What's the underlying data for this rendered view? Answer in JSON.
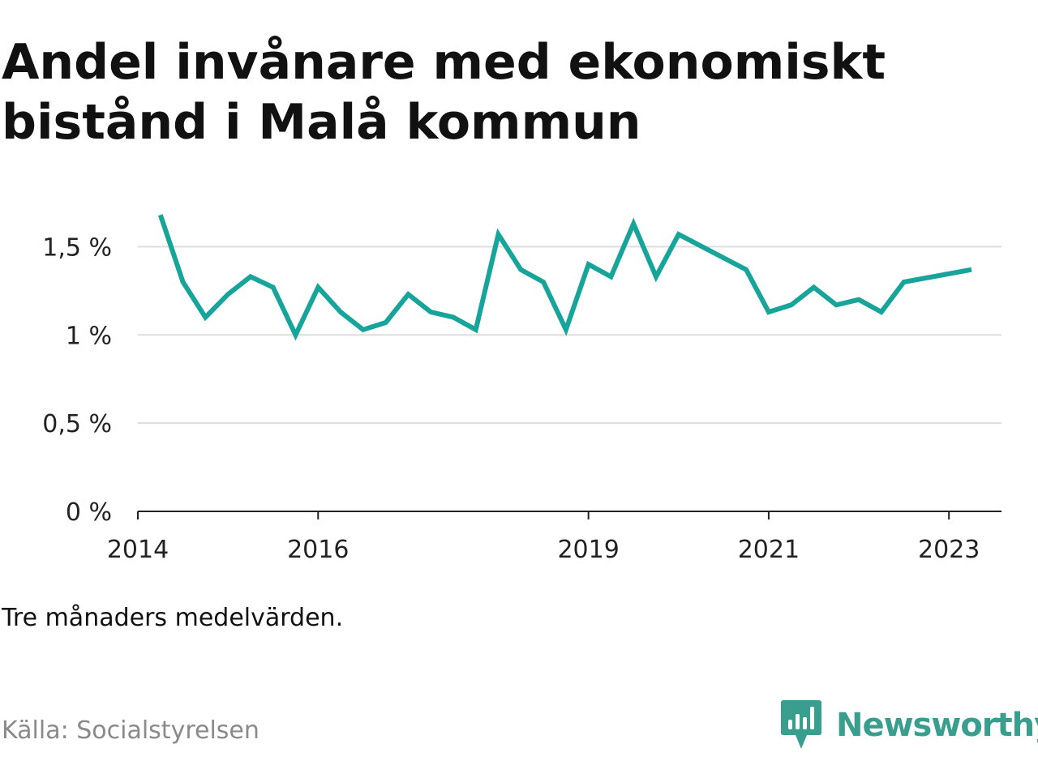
{
  "title": "Andel invånare med ekonomiskt bistånd i Malå kommun",
  "note": "Tre månaders medelvärden.",
  "source": "Källa: Socialstyrelsen",
  "brand": {
    "name": "Newsworthy",
    "logo_icon": "bar-chart-speech-bubble-icon",
    "color": "#3a9e8f"
  },
  "colors": {
    "line": "#17a49a",
    "grid": "#dddddd",
    "axis": "#222222",
    "text": "#111111",
    "muted": "#8a8a8a"
  },
  "chart_data": {
    "type": "line",
    "title": "Andel invånare med ekonomiskt bistånd i Malå kommun",
    "xlabel": "",
    "ylabel": "",
    "x_ticks": [
      "2014",
      "2016",
      "2019",
      "2021",
      "2023"
    ],
    "y_ticks": [
      {
        "value": 0,
        "label": "0 %"
      },
      {
        "value": 0.5,
        "label": "0,5 %"
      },
      {
        "value": 1,
        "label": "1 %"
      },
      {
        "value": 1.5,
        "label": "1,5 %"
      }
    ],
    "ylim": [
      0,
      1.75
    ],
    "xlim": [
      "2014-01",
      "2023-08"
    ],
    "grid": true,
    "series": [
      {
        "values": [
          {
            "x": "2014-04",
            "y": 1.68
          },
          {
            "x": "2014-07",
            "y": 1.3
          },
          {
            "x": "2014-10",
            "y": 1.1
          },
          {
            "x": "2015-01",
            "y": 1.23
          },
          {
            "x": "2015-04",
            "y": 1.33
          },
          {
            "x": "2015-07",
            "y": 1.27
          },
          {
            "x": "2015-10",
            "y": 1.0
          },
          {
            "x": "2016-01",
            "y": 1.27
          },
          {
            "x": "2016-04",
            "y": 1.13
          },
          {
            "x": "2016-07",
            "y": 1.03
          },
          {
            "x": "2016-10",
            "y": 1.07
          },
          {
            "x": "2017-01",
            "y": 1.23
          },
          {
            "x": "2017-04",
            "y": 1.13
          },
          {
            "x": "2017-07",
            "y": 1.1
          },
          {
            "x": "2017-10",
            "y": 1.03
          },
          {
            "x": "2018-01",
            "y": 1.57
          },
          {
            "x": "2018-04",
            "y": 1.37
          },
          {
            "x": "2018-07",
            "y": 1.3
          },
          {
            "x": "2018-10",
            "y": 1.03
          },
          {
            "x": "2019-01",
            "y": 1.4
          },
          {
            "x": "2019-04",
            "y": 1.33
          },
          {
            "x": "2019-07",
            "y": 1.63
          },
          {
            "x": "2019-10",
            "y": 1.33
          },
          {
            "x": "2020-01",
            "y": 1.57
          },
          {
            "x": "2020-10",
            "y": 1.37
          },
          {
            "x": "2021-01",
            "y": 1.13
          },
          {
            "x": "2021-04",
            "y": 1.17
          },
          {
            "x": "2021-07",
            "y": 1.27
          },
          {
            "x": "2021-10",
            "y": 1.17
          },
          {
            "x": "2022-01",
            "y": 1.2
          },
          {
            "x": "2022-04",
            "y": 1.13
          },
          {
            "x": "2022-07",
            "y": 1.3
          },
          {
            "x": "2023-04",
            "y": 1.37
          }
        ]
      }
    ]
  }
}
